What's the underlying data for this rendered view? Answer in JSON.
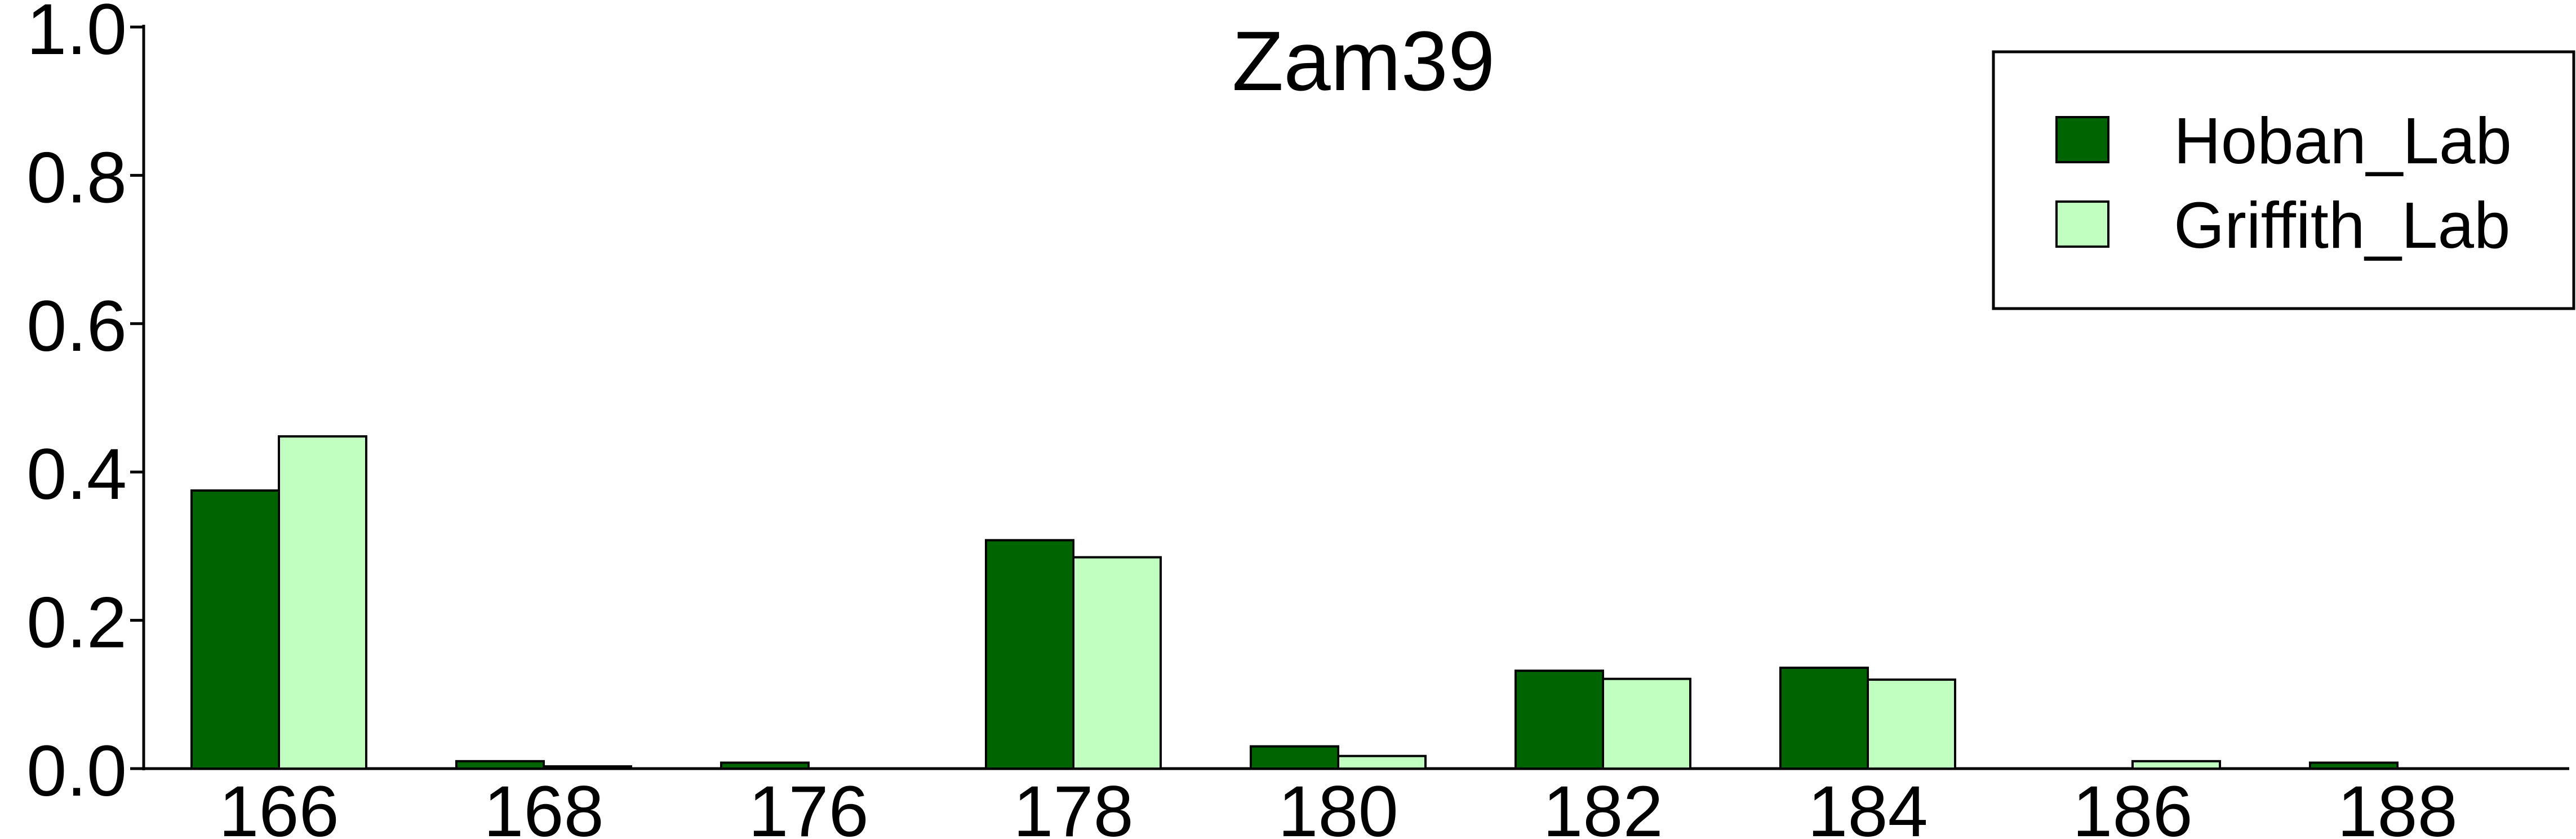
{
  "chart_data": {
    "type": "bar",
    "title": "Zam39",
    "xlabel": "",
    "ylabel": "",
    "categories": [
      "166",
      "168",
      "176",
      "178",
      "180",
      "182",
      "184",
      "186",
      "188"
    ],
    "series": [
      {
        "name": "Hoban_Lab",
        "color": "#006400",
        "values": [
          0.375,
          0.01,
          0.008,
          0.308,
          0.03,
          0.132,
          0.136,
          0.0,
          0.008
        ]
      },
      {
        "name": "Griffith_Lab",
        "color": "#c1ffc1",
        "values": [
          0.448,
          0.003,
          0.0,
          0.285,
          0.017,
          0.121,
          0.12,
          0.01,
          0.0
        ]
      }
    ],
    "ylim": [
      0,
      1.0
    ],
    "yticks": [
      "0.0",
      "0.2",
      "0.4",
      "0.6",
      "0.8",
      "1.0"
    ],
    "grid": false,
    "legend_position": "top-right"
  }
}
